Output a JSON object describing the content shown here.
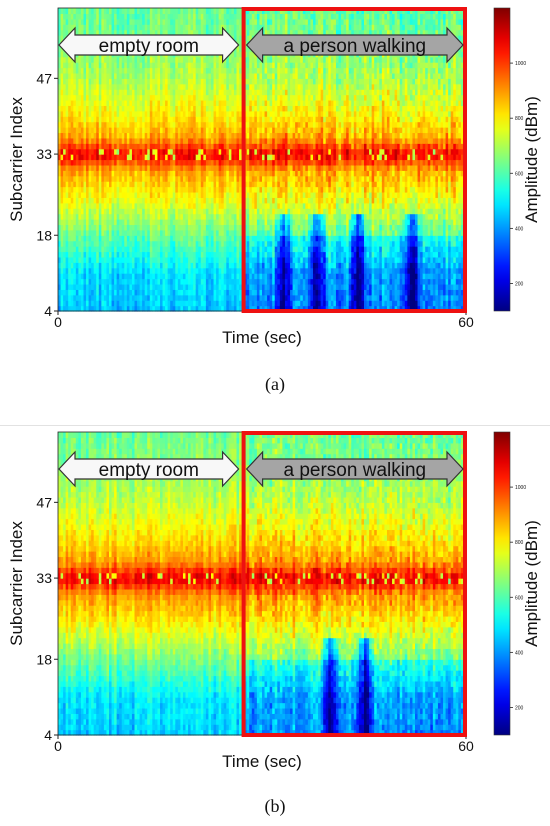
{
  "chart_data": [
    {
      "type": "heatmap",
      "panel_label": "a",
      "xlabel": "Time (sec)",
      "ylabel": "Subcarrier Index",
      "colorbar_label": "Amplitude (dBm)",
      "xlim": [
        0,
        60
      ],
      "ylim": [
        4,
        60
      ],
      "xticks": [
        "0",
        "60"
      ],
      "yticks": [
        "4",
        "18",
        "33",
        "47"
      ],
      "yticks_values": [
        4,
        18,
        33,
        47
      ],
      "colorbar_ticks": [
        "200",
        "400",
        "600",
        "800",
        "1000"
      ],
      "colorbar_range": [
        100,
        1200
      ],
      "colormap": "jet",
      "regions": [
        {
          "label": "empty room",
          "x_start": 0,
          "x_end": 27,
          "style": "white-arrow"
        },
        {
          "label": "a person walking",
          "x_start": 27,
          "x_end": 60,
          "style": "gray-arrow",
          "highlight_color": "#ee1111"
        }
      ],
      "subcarrier_profile": [
        {
          "subcarrier": 4,
          "amplitude": 450
        },
        {
          "subcarrier": 11,
          "amplitude": 480
        },
        {
          "subcarrier": 18,
          "amplitude": 620
        },
        {
          "subcarrier": 25,
          "amplitude": 780
        },
        {
          "subcarrier": 30,
          "amplitude": 880
        },
        {
          "subcarrier": 33,
          "amplitude": 1080
        },
        {
          "subcarrier": 36,
          "amplitude": 880
        },
        {
          "subcarrier": 40,
          "amplitude": 800
        },
        {
          "subcarrier": 47,
          "amplitude": 700
        },
        {
          "subcarrier": 55,
          "amplitude": 640
        },
        {
          "subcarrier": 60,
          "amplitude": 620
        }
      ],
      "walking_dip_times": [
        33,
        38,
        44,
        52
      ]
    },
    {
      "type": "heatmap",
      "panel_label": "b",
      "xlabel": "Time (sec)",
      "ylabel": "Subcarrier Index",
      "colorbar_label": "Amplitude (dBm)",
      "xlim": [
        0,
        60
      ],
      "ylim": [
        4,
        60
      ],
      "xticks": [
        "0",
        "60"
      ],
      "yticks": [
        "4",
        "18",
        "33",
        "47"
      ],
      "yticks_values": [
        4,
        18,
        33,
        47
      ],
      "colorbar_ticks": [
        "200",
        "400",
        "600",
        "800",
        "1000"
      ],
      "colorbar_range": [
        100,
        1200
      ],
      "colormap": "jet",
      "regions": [
        {
          "label": "empty room",
          "x_start": 0,
          "x_end": 27,
          "style": "white-arrow"
        },
        {
          "label": "a person walking",
          "x_start": 27,
          "x_end": 60,
          "style": "gray-arrow",
          "highlight_color": "#ee1111"
        }
      ],
      "subcarrier_profile": [
        {
          "subcarrier": 4,
          "amplitude": 460
        },
        {
          "subcarrier": 11,
          "amplitude": 490
        },
        {
          "subcarrier": 18,
          "amplitude": 640
        },
        {
          "subcarrier": 25,
          "amplitude": 800
        },
        {
          "subcarrier": 30,
          "amplitude": 900
        },
        {
          "subcarrier": 33,
          "amplitude": 1090
        },
        {
          "subcarrier": 36,
          "amplitude": 900
        },
        {
          "subcarrier": 40,
          "amplitude": 820
        },
        {
          "subcarrier": 47,
          "amplitude": 720
        },
        {
          "subcarrier": 55,
          "amplitude": 650
        },
        {
          "subcarrier": 60,
          "amplitude": 630
        }
      ],
      "walking_dip_times": [
        40,
        45
      ]
    }
  ],
  "captions": {
    "a": "(a)",
    "b": "(b)"
  }
}
